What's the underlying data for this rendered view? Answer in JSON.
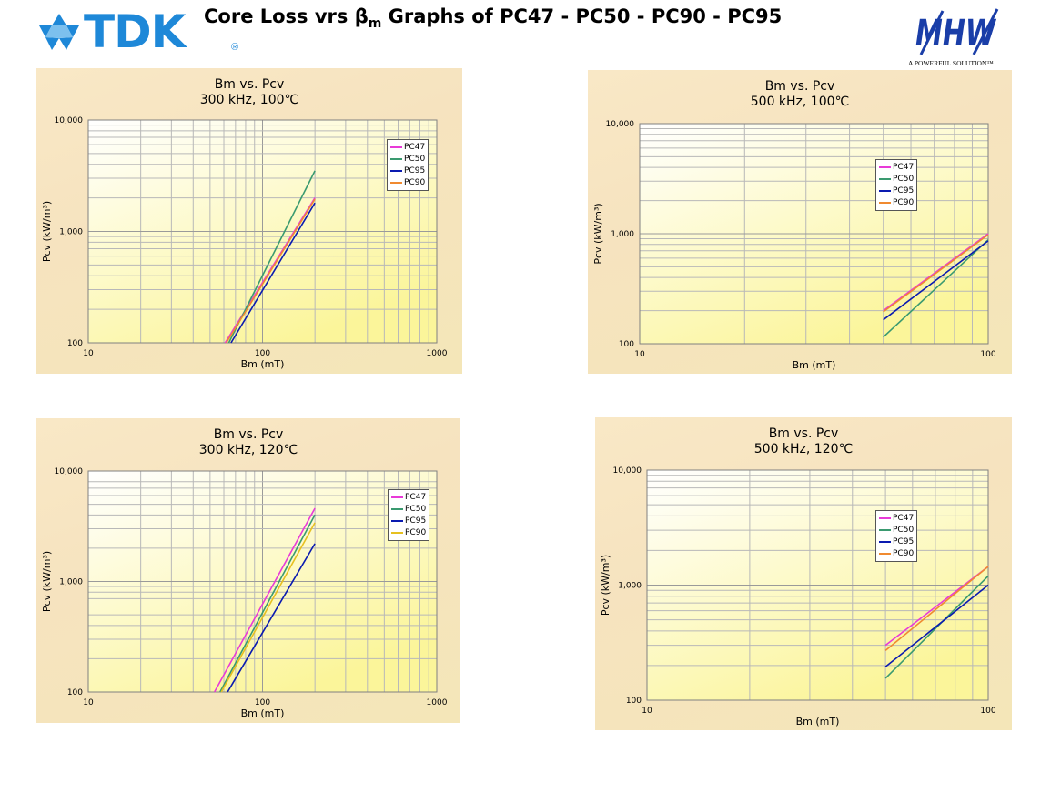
{
  "header": {
    "brand_left": "TDK",
    "brand_left_reg": "®",
    "title_part1": "Core Loss vrs β",
    "title_sub": "m",
    "title_part2": " Graphs of PC47 - PC50 - PC90 - PC95",
    "brand_right": "MHW",
    "brand_right_tagline": "A POWERFUL SOLUTION™",
    "brand_color": "#1e88d8",
    "brand_right_color": "#1a3ea8"
  },
  "chart_data": [
    {
      "type": "line",
      "title": "Bm vs. Pcv",
      "subtitle": "300 kHz, 100℃",
      "xlabel": "Bm (mT)",
      "ylabel": "Pcv (kW/m³)",
      "xscale": "log",
      "yscale": "log",
      "xlim": [
        10,
        1000
      ],
      "ylim": [
        100,
        10000
      ],
      "xticks": [
        "10",
        "100",
        "1000"
      ],
      "yticks": [
        "100",
        "1,000",
        "10,000"
      ],
      "grid": true,
      "legend_position": "top-right",
      "series": [
        {
          "name": "PC47",
          "color": "#e83ad8",
          "x": [
            61,
            200
          ],
          "y": [
            100,
            2000
          ]
        },
        {
          "name": "PC50",
          "color": "#3a9a70",
          "x": [
            64,
            200
          ],
          "y": [
            100,
            3500
          ]
        },
        {
          "name": "PC95",
          "color": "#0a1ab0",
          "x": [
            66,
            200
          ],
          "y": [
            100,
            1800
          ]
        },
        {
          "name": "PC90",
          "color": "#f08a30",
          "x": [
            62,
            200
          ],
          "y": [
            100,
            1950
          ]
        }
      ]
    },
    {
      "type": "line",
      "title": "Bm vs. Pcv",
      "subtitle": "500 kHz, 100℃",
      "xlabel": "Bm (mT)",
      "ylabel": "Pcv (kW/m³)",
      "xscale": "log",
      "yscale": "log",
      "xlim": [
        10,
        100
      ],
      "ylim": [
        100,
        10000
      ],
      "xticks": [
        "10",
        "100"
      ],
      "yticks": [
        "100",
        "1,000",
        "10,000"
      ],
      "grid": true,
      "legend_position": "top-right",
      "series": [
        {
          "name": "PC47",
          "color": "#e83ad8",
          "x": [
            50,
            100
          ],
          "y": [
            200,
            1000
          ]
        },
        {
          "name": "PC50",
          "color": "#3a9a70",
          "x": [
            50,
            100
          ],
          "y": [
            115,
            880
          ]
        },
        {
          "name": "PC95",
          "color": "#0a1ab0",
          "x": [
            50,
            100
          ],
          "y": [
            165,
            860
          ]
        },
        {
          "name": "PC90",
          "color": "#f08a30",
          "x": [
            50,
            100
          ],
          "y": [
            195,
            980
          ]
        }
      ]
    },
    {
      "type": "line",
      "title": "Bm vs. Pcv",
      "subtitle": "300 kHz, 120℃",
      "xlabel": "Bm (mT)",
      "ylabel": "Pcv (kW/m³)",
      "xscale": "log",
      "yscale": "log",
      "xlim": [
        10,
        1000
      ],
      "ylim": [
        100,
        10000
      ],
      "xticks": [
        "10",
        "100",
        "1000"
      ],
      "yticks": [
        "100",
        "1,000",
        "10,000"
      ],
      "grid": true,
      "legend_position": "top-right",
      "series": [
        {
          "name": "PC47",
          "color": "#e83ad8",
          "x": [
            53,
            200
          ],
          "y": [
            100,
            4600
          ]
        },
        {
          "name": "PC50",
          "color": "#3a9a70",
          "x": [
            57,
            200
          ],
          "y": [
            100,
            4000
          ]
        },
        {
          "name": "PC95",
          "color": "#0a1ab0",
          "x": [
            63,
            200
          ],
          "y": [
            100,
            2200
          ]
        },
        {
          "name": "PC90",
          "color": "#e6c020",
          "x": [
            58,
            200
          ],
          "y": [
            100,
            3400
          ]
        }
      ]
    },
    {
      "type": "line",
      "title": "Bm vs. Pcv",
      "subtitle": "500 kHz, 120℃",
      "xlabel": "Bm (mT)",
      "ylabel": "Pcv (kW/m³)",
      "xscale": "log",
      "yscale": "log",
      "xlim": [
        10,
        100
      ],
      "ylim": [
        100,
        10000
      ],
      "xticks": [
        "10",
        "100"
      ],
      "yticks": [
        "100",
        "1,000",
        "10,000"
      ],
      "grid": true,
      "legend_position": "top-right",
      "series": [
        {
          "name": "PC47",
          "color": "#e83ad8",
          "x": [
            50,
            100
          ],
          "y": [
            300,
            1450
          ]
        },
        {
          "name": "PC50",
          "color": "#3a9a70",
          "x": [
            50,
            100
          ],
          "y": [
            155,
            1200
          ]
        },
        {
          "name": "PC95",
          "color": "#0a1ab0",
          "x": [
            50,
            100
          ],
          "y": [
            195,
            1000
          ]
        },
        {
          "name": "PC90",
          "color": "#f08a30",
          "x": [
            50,
            100
          ],
          "y": [
            270,
            1450
          ]
        }
      ]
    }
  ]
}
